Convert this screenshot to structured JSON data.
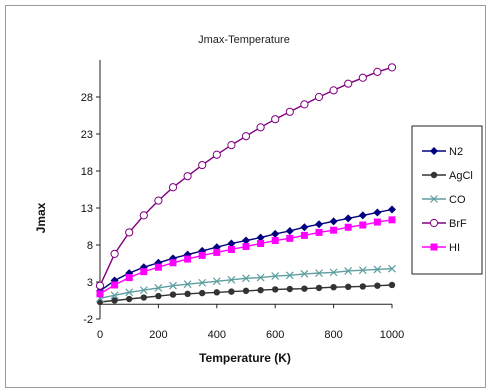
{
  "chart_data": {
    "type": "line",
    "title": "Jmax-Temperature",
    "xlabel": "Temperature (K)",
    "ylabel": "Jmax",
    "xlim": [
      0,
      1000
    ],
    "ylim": [
      -2,
      33
    ],
    "xticks": [
      0,
      200,
      400,
      600,
      800,
      1000
    ],
    "yticks": [
      -2,
      3,
      8,
      13,
      18,
      23,
      28
    ],
    "grid": false,
    "legend_position": "right",
    "x": [
      0,
      50,
      100,
      150,
      200,
      250,
      300,
      350,
      400,
      450,
      500,
      550,
      600,
      650,
      700,
      750,
      800,
      850,
      900,
      950,
      1000
    ],
    "series": [
      {
        "name": "N2",
        "color": "#000080",
        "marker": "diamond",
        "values": [
          1.8,
          3.2,
          4.2,
          5.0,
          5.6,
          6.2,
          6.7,
          7.2,
          7.7,
          8.2,
          8.6,
          9.0,
          9.5,
          9.9,
          10.4,
          10.8,
          11.2,
          11.6,
          12.0,
          12.4,
          12.8
        ]
      },
      {
        "name": "AgCl",
        "color": "#333333",
        "marker": "circle-filled",
        "values": [
          0.3,
          0.5,
          0.7,
          0.9,
          1.1,
          1.3,
          1.4,
          1.5,
          1.6,
          1.7,
          1.8,
          1.9,
          2.0,
          2.05,
          2.1,
          2.2,
          2.3,
          2.35,
          2.4,
          2.5,
          2.6
        ]
      },
      {
        "name": "CO",
        "color": "#5f9ea0",
        "marker": "x",
        "values": [
          0.8,
          1.2,
          1.6,
          1.9,
          2.2,
          2.5,
          2.7,
          2.9,
          3.1,
          3.3,
          3.5,
          3.6,
          3.8,
          3.9,
          4.1,
          4.2,
          4.3,
          4.5,
          4.6,
          4.7,
          4.8
        ]
      },
      {
        "name": "BrF",
        "color": "#800080",
        "marker": "circle-open",
        "values": [
          2.5,
          6.8,
          9.7,
          12.0,
          14.0,
          15.8,
          17.3,
          18.8,
          20.2,
          21.5,
          22.7,
          23.9,
          25.0,
          26.0,
          27.0,
          28.0,
          28.9,
          29.8,
          30.6,
          31.4,
          32.0
        ]
      },
      {
        "name": "HI",
        "color": "#ff00ff",
        "marker": "square",
        "values": [
          1.4,
          2.6,
          3.6,
          4.4,
          5.0,
          5.6,
          6.1,
          6.6,
          7.0,
          7.4,
          7.8,
          8.2,
          8.6,
          8.9,
          9.3,
          9.7,
          10.0,
          10.4,
          10.7,
          11.1,
          11.4
        ]
      }
    ]
  }
}
